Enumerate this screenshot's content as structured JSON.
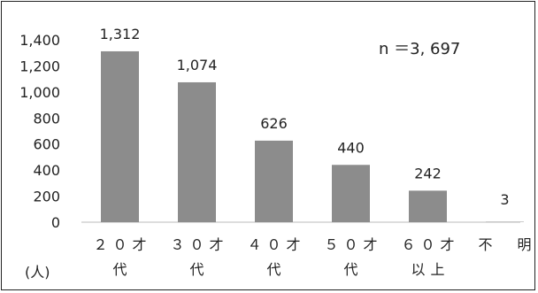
{
  "chart_data": {
    "type": "bar",
    "categories": [
      [
        "２０才",
        "代"
      ],
      [
        "３０才",
        "代"
      ],
      [
        "４０才",
        "代"
      ],
      [
        "５０才",
        "代"
      ],
      [
        "６０才",
        "以上"
      ],
      [
        "不　明",
        ""
      ]
    ],
    "values": [
      1312,
      1074,
      626,
      440,
      242,
      3
    ],
    "data_labels": [
      "1,312",
      "1,074",
      "626",
      "440",
      "242",
      "3"
    ],
    "y_ticks": [
      0,
      200,
      400,
      600,
      800,
      1000,
      1200,
      1400
    ],
    "y_tick_labels": [
      "0",
      "200",
      "400",
      "600",
      "800",
      "1,000",
      "1,200",
      "1,400"
    ],
    "ylim": [
      0,
      1400
    ],
    "unit_label": "(人)",
    "annotation": "n ＝3, 697",
    "bar_color": "#8c8c8c",
    "grid": false
  }
}
